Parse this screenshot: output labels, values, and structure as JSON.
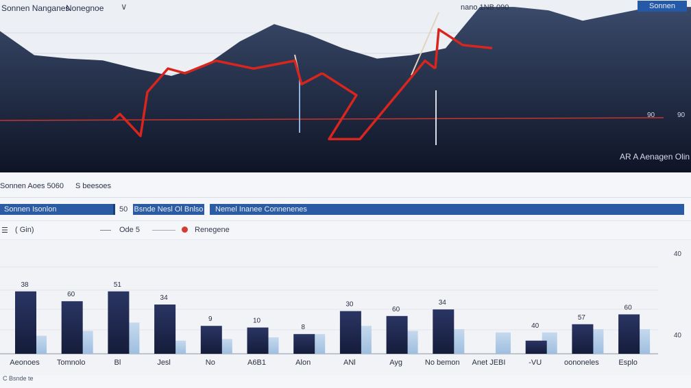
{
  "header": {
    "left_label": "Sonnen Nanganes",
    "search_label": "Nonegnoe",
    "chevron_icon": "chevron-down-icon",
    "center_label": "nano 1NB 090",
    "button_label": "Sonnen"
  },
  "top_chart_overlay": {
    "corner_label": "AR A Aenagen Olin",
    "ref_label_a": "90",
    "ref_label_b": "90"
  },
  "summary": {
    "left": "Sonnen Aoes 5060",
    "right": "S beesoes"
  },
  "filters": {
    "field_a": "Sonnen Isonlon",
    "separator": "50",
    "field_b": "Bsnde Nesl Ol Bnlso",
    "field_c": "Nemel Inanee Connenenes"
  },
  "legend": {
    "menu_icon": "menu-icon",
    "box_label": "( Gin)",
    "series_a_label": "Ode 5",
    "series_b_label": "Renegene"
  },
  "footer": {
    "text": "C Bsnde te"
  },
  "colors": {
    "area_dark": "#161d33",
    "area_mid": "#2c3956",
    "line_red": "#d8261f",
    "bar_dark": "#202a50",
    "bar_light": "#b2cbe6",
    "accent_blue": "#2b5ba3"
  },
  "chart_data": [
    {
      "type": "area",
      "x": [
        0,
        50,
        100,
        150,
        200,
        250,
        300,
        350,
        400,
        450,
        500,
        550,
        600,
        650,
        700,
        750,
        800,
        850,
        900,
        950,
        1008
      ],
      "series": [
        {
          "values": [
            82,
            68,
            66,
            65,
            60,
            56,
            62,
            76,
            86,
            80,
            72,
            66,
            68,
            72,
            96,
            96,
            94,
            88,
            92,
            96,
            96
          ]
        }
      ],
      "ylim": [
        0,
        100
      ]
    },
    {
      "type": "line",
      "x": [
        165,
        175,
        205,
        215,
        245,
        270,
        315,
        370,
        430,
        440,
        470,
        520,
        480,
        525,
        620,
        635,
        640,
        675,
        718
      ],
      "series": [
        {
          "values": [
            42,
            46,
            32,
            60,
            75,
            72,
            80,
            75,
            80,
            65,
            72,
            58,
            30,
            30,
            80,
            75,
            100,
            90,
            88
          ]
        }
      ],
      "ylim": [
        0,
        110
      ]
    },
    {
      "type": "bar",
      "categories": [
        "Aeonoes",
        "Tomnolo",
        "Bl",
        "Jesl",
        "No",
        "A6B1",
        "Alon",
        "ANl",
        "Ayg",
        "No bemon",
        "Anet JEBI",
        "-VU",
        "oononeles",
        "Esplo"
      ],
      "series": [
        {
          "name": "Ode 5",
          "values": [
            38,
            32,
            38,
            30,
            17,
            16,
            12,
            26,
            23,
            27,
            0,
            8,
            18,
            24
          ]
        },
        {
          "name": "Renegene",
          "values": [
            11,
            14,
            19,
            8,
            9,
            10,
            12,
            17,
            14,
            15,
            13,
            13,
            15,
            15
          ]
        }
      ],
      "data_labels": [
        "38",
        "60",
        "51",
        "34",
        "9",
        "10",
        "8",
        "30",
        "60",
        "34",
        "",
        "40",
        "57",
        "60"
      ],
      "y_tick_labels": [
        "40",
        "40"
      ],
      "ylim": [
        0,
        50
      ]
    }
  ]
}
